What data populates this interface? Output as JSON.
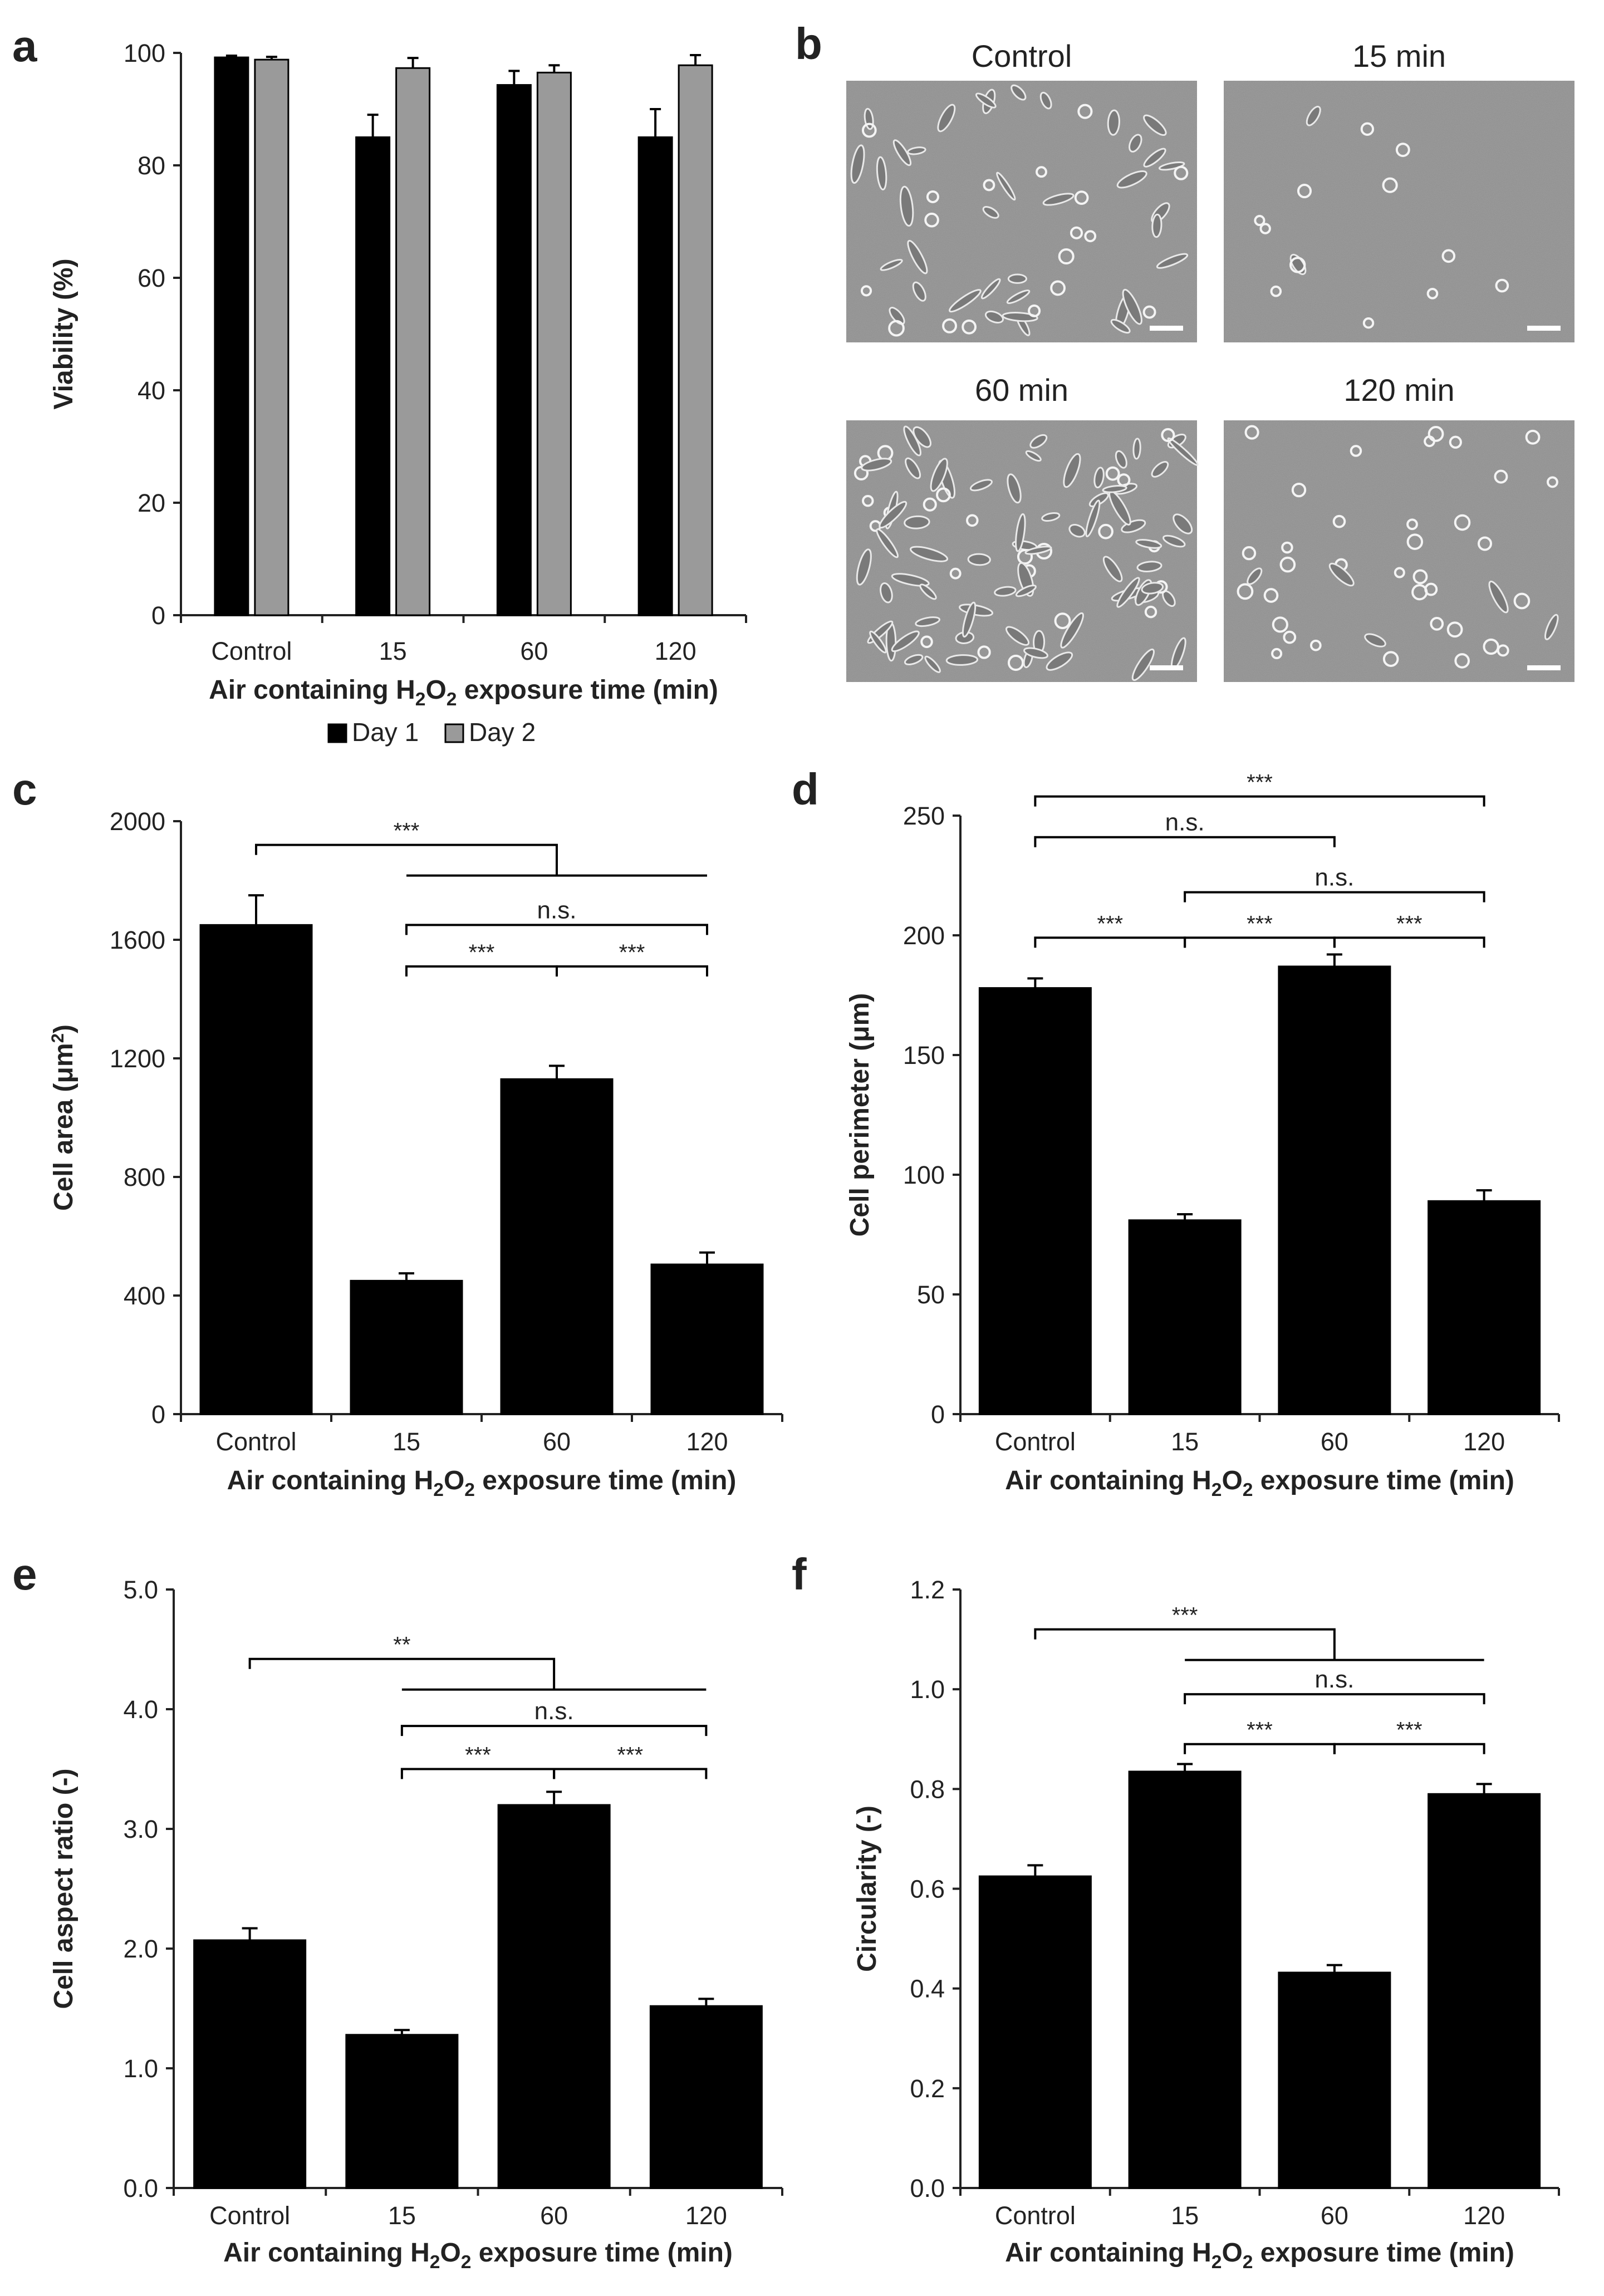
{
  "colors": {
    "bar_primary": "#000000",
    "bar_secondary": "#9a9a9a",
    "axis": "#222222",
    "micro_bg": "#8c8c8c"
  },
  "axis_common": {
    "xlabel_prefix": "Air containing H",
    "sub_2": "2",
    "letter_O": "O",
    "xlabel_suffix": " exposure time (min)"
  },
  "panel_b": {
    "letter": "b",
    "images": [
      {
        "label": "Control"
      },
      {
        "label": "15 min"
      },
      {
        "label": "60 min"
      },
      {
        "label": "120 min"
      }
    ]
  },
  "chart_data": [
    {
      "panel": "a",
      "type": "bar",
      "categories": [
        "Control",
        "15",
        "60",
        "120"
      ],
      "series": [
        {
          "name": "Day 1",
          "values": [
            99.2,
            85.0,
            94.3,
            85.0
          ],
          "errors": [
            0.3,
            4.0,
            2.5,
            5.0
          ]
        },
        {
          "name": "Day 2",
          "values": [
            98.8,
            97.3,
            96.5,
            97.8
          ],
          "errors": [
            0.5,
            1.8,
            1.3,
            1.8
          ]
        }
      ],
      "ylabel": "Viability (%)",
      "ylim": [
        0,
        100
      ],
      "yticks": [
        0,
        20,
        40,
        60,
        80,
        100
      ],
      "ytick_labels": [
        "0",
        "20",
        "40",
        "60",
        "80",
        "100"
      ],
      "legend": [
        "Day 1",
        "Day 2"
      ],
      "legend_position": "bottom-center",
      "brackets": []
    },
    {
      "panel": "c",
      "type": "bar",
      "categories": [
        "Control",
        "15",
        "60",
        "120"
      ],
      "series": [
        {
          "name": "Cell area",
          "values": [
            1650,
            450,
            1130,
            505
          ],
          "errors": [
            100,
            25,
            45,
            40
          ]
        }
      ],
      "ylabel_main": "Cell area (μm",
      "ylabel_sup": "2",
      "ylabel_end": ")",
      "ylim": [
        0,
        2000
      ],
      "yticks": [
        0,
        400,
        800,
        1200,
        1600,
        2000
      ],
      "ytick_labels": [
        "0",
        "400",
        "800",
        "1200",
        "1600",
        "2000"
      ],
      "brackets": [
        {
          "type": "group",
          "from": 0,
          "to_start": 1,
          "to_end": 3,
          "value": 1920,
          "label": "***"
        },
        {
          "type": "pair",
          "from": 1,
          "to": 3,
          "value": 1650,
          "label": "n.s."
        },
        {
          "type": "pair",
          "from": 1,
          "to": 2,
          "value": 1510,
          "label": "***"
        },
        {
          "type": "pair",
          "from": 2,
          "to": 3,
          "value": 1510,
          "label": "***"
        }
      ]
    },
    {
      "panel": "d",
      "type": "bar",
      "categories": [
        "Control",
        "15",
        "60",
        "120"
      ],
      "series": [
        {
          "name": "Cell perimeter",
          "values": [
            178,
            81,
            187,
            89
          ],
          "errors": [
            4,
            2.5,
            5,
            4.5
          ]
        }
      ],
      "ylabel": "Cell perimeter (μm)",
      "ylim": [
        0,
        250
      ],
      "yticks": [
        0,
        50,
        100,
        150,
        200,
        250
      ],
      "ytick_labels": [
        "0",
        "50",
        "100",
        "150",
        "200",
        "250"
      ],
      "brackets": [
        {
          "type": "pair",
          "from": 0,
          "to": 3,
          "value": 258,
          "label": "***"
        },
        {
          "type": "pair",
          "from": 0,
          "to": 2,
          "value": 241,
          "label": "n.s."
        },
        {
          "type": "pair",
          "from": 1,
          "to": 3,
          "value": 218,
          "label": "n.s."
        },
        {
          "type": "pair",
          "from": 0,
          "to": 1,
          "value": 199,
          "label": "***"
        },
        {
          "type": "pair",
          "from": 1,
          "to": 2,
          "value": 199,
          "label": "***"
        },
        {
          "type": "pair",
          "from": 2,
          "to": 3,
          "value": 199,
          "label": "***"
        }
      ]
    },
    {
      "panel": "e",
      "type": "bar",
      "categories": [
        "Control",
        "15",
        "60",
        "120"
      ],
      "series": [
        {
          "name": "Cell aspect ratio",
          "values": [
            2.07,
            1.28,
            3.2,
            1.52
          ],
          "errors": [
            0.1,
            0.04,
            0.11,
            0.06
          ]
        }
      ],
      "ylabel": "Cell aspect ratio (-)",
      "ylim": [
        0,
        5
      ],
      "yticks": [
        0,
        1,
        2,
        3,
        4,
        5
      ],
      "ytick_labels": [
        "0.0",
        "1.0",
        "2.0",
        "3.0",
        "4.0",
        "5.0"
      ],
      "brackets": [
        {
          "type": "group",
          "from": 0,
          "to_start": 1,
          "to_end": 3,
          "value": 4.42,
          "label": "**"
        },
        {
          "type": "pair",
          "from": 1,
          "to": 3,
          "value": 3.86,
          "label": "n.s."
        },
        {
          "type": "pair",
          "from": 1,
          "to": 2,
          "value": 3.5,
          "label": "***"
        },
        {
          "type": "pair",
          "from": 2,
          "to": 3,
          "value": 3.5,
          "label": "***"
        }
      ]
    },
    {
      "panel": "f",
      "type": "bar",
      "categories": [
        "Control",
        "15",
        "60",
        "120"
      ],
      "series": [
        {
          "name": "Circularity",
          "values": [
            0.625,
            0.835,
            0.432,
            0.79
          ],
          "errors": [
            0.022,
            0.015,
            0.015,
            0.02
          ]
        }
      ],
      "ylabel": "Circularity (-)",
      "ylim": [
        0,
        1.2
      ],
      "yticks": [
        0,
        0.2,
        0.4,
        0.6,
        0.8,
        1.0,
        1.2
      ],
      "ytick_labels": [
        "0.0",
        "0.2",
        "0.4",
        "0.6",
        "0.8",
        "1.0",
        "1.2"
      ],
      "brackets": [
        {
          "type": "group",
          "from": 0,
          "to_start": 1,
          "to_end": 3,
          "value": 1.12,
          "label": "***"
        },
        {
          "type": "pair",
          "from": 1,
          "to": 3,
          "value": 0.99,
          "label": "n.s."
        },
        {
          "type": "pair",
          "from": 1,
          "to": 2,
          "value": 0.89,
          "label": "***"
        },
        {
          "type": "pair",
          "from": 2,
          "to": 3,
          "value": 0.89,
          "label": "***"
        }
      ]
    }
  ]
}
